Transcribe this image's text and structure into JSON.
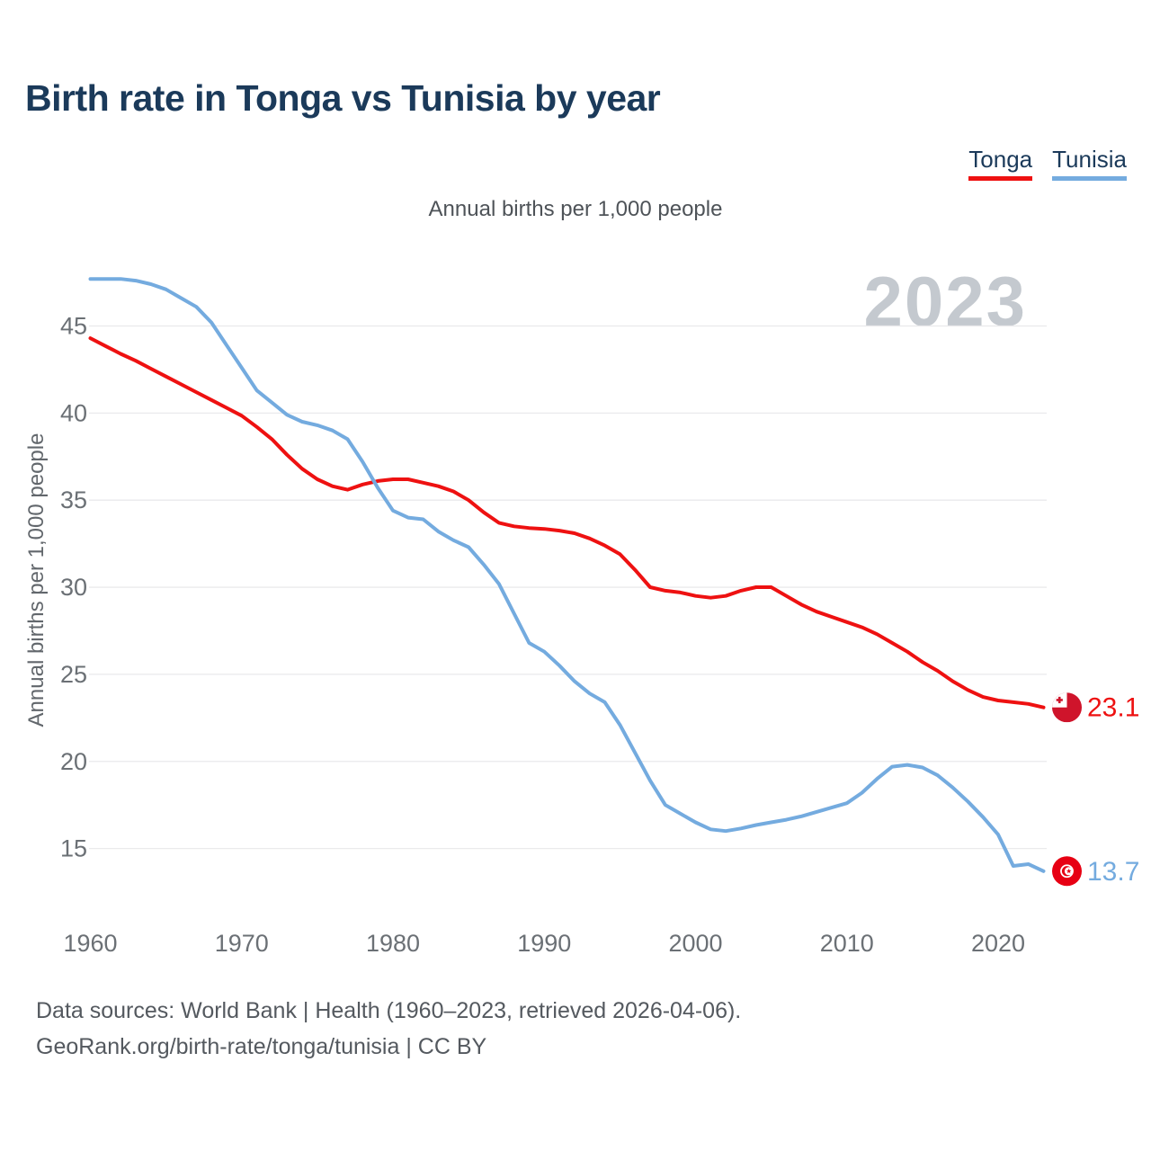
{
  "header": {
    "title": "Birth rate in Tonga vs Tunisia by year"
  },
  "legend": [
    {
      "label": "Tonga",
      "color": "#ee1111"
    },
    {
      "label": "Tunisia",
      "color": "#74abdf"
    }
  ],
  "watermark": "2023",
  "footer": {
    "line1": "Data sources: World Bank | Health (1960–2023, retrieved 2026-04-06).",
    "line2": "GeoRank.org/birth-rate/tonga/tunisia | CC BY"
  },
  "chart_data": {
    "type": "line",
    "title": "Birth rate in Tonga vs Tunisia by year",
    "subtitle": "Annual births per 1,000 people",
    "ylabel": "Annual births per 1,000 people",
    "xlabel": "",
    "grid": "horizontal",
    "legend_position": "top-right",
    "xlim": [
      1960,
      2023
    ],
    "ylim": [
      13,
      48.5
    ],
    "x_ticks": [
      1960,
      1970,
      1980,
      1990,
      2000,
      2010,
      2020
    ],
    "y_ticks": [
      45,
      40,
      35,
      30,
      25,
      20,
      15
    ],
    "x": [
      1960,
      1961,
      1962,
      1963,
      1964,
      1965,
      1966,
      1967,
      1968,
      1969,
      1970,
      1971,
      1972,
      1973,
      1974,
      1975,
      1976,
      1977,
      1978,
      1979,
      1980,
      1981,
      1982,
      1983,
      1984,
      1985,
      1986,
      1987,
      1988,
      1989,
      1990,
      1991,
      1992,
      1993,
      1994,
      1995,
      1996,
      1997,
      1998,
      1999,
      2000,
      2001,
      2002,
      2003,
      2004,
      2005,
      2006,
      2007,
      2008,
      2009,
      2010,
      2011,
      2012,
      2013,
      2014,
      2015,
      2016,
      2017,
      2018,
      2019,
      2020,
      2021,
      2022,
      2023
    ],
    "series": [
      {
        "name": "Tonga",
        "color": "#ee1111",
        "flag": "tonga",
        "end_label": "23.1",
        "values": [
          44.3,
          43.85,
          43.4,
          43.0,
          42.55,
          42.1,
          41.65,
          41.2,
          40.75,
          40.3,
          39.85,
          39.2,
          38.5,
          37.6,
          36.8,
          36.2,
          35.8,
          35.6,
          35.9,
          36.1,
          36.2,
          36.2,
          36.0,
          35.8,
          35.5,
          35.0,
          34.3,
          33.7,
          33.5,
          33.4,
          33.35,
          33.25,
          33.1,
          32.8,
          32.4,
          31.9,
          31.0,
          30.0,
          29.8,
          29.7,
          29.5,
          29.4,
          29.5,
          29.8,
          30.0,
          30.0,
          29.5,
          29.0,
          28.6,
          28.3,
          28.0,
          27.7,
          27.3,
          26.8,
          26.3,
          25.7,
          25.2,
          24.6,
          24.1,
          23.7,
          23.5,
          23.4,
          23.3,
          23.1
        ]
      },
      {
        "name": "Tunisia",
        "color": "#74abdf",
        "flag": "tunisia",
        "end_label": "13.7",
        "values": [
          47.7,
          47.7,
          47.7,
          47.6,
          47.4,
          47.1,
          46.6,
          46.1,
          45.2,
          43.9,
          42.6,
          41.3,
          40.6,
          39.9,
          39.5,
          39.3,
          39.0,
          38.5,
          37.2,
          35.7,
          34.4,
          34.0,
          33.9,
          33.2,
          32.7,
          32.3,
          31.3,
          30.2,
          28.5,
          26.8,
          26.3,
          25.5,
          24.6,
          23.9,
          23.4,
          22.1,
          20.5,
          18.9,
          17.5,
          17.0,
          16.5,
          16.1,
          16.0,
          16.15,
          16.35,
          16.5,
          16.65,
          16.85,
          17.1,
          17.35,
          17.6,
          18.2,
          19.0,
          19.7,
          19.8,
          19.65,
          19.2,
          18.5,
          17.7,
          16.8,
          15.8,
          14.0,
          14.1,
          13.7
        ]
      }
    ],
    "flag_colors": {
      "tonga_red": "#cf142b",
      "tunisia_red": "#e70013"
    }
  }
}
